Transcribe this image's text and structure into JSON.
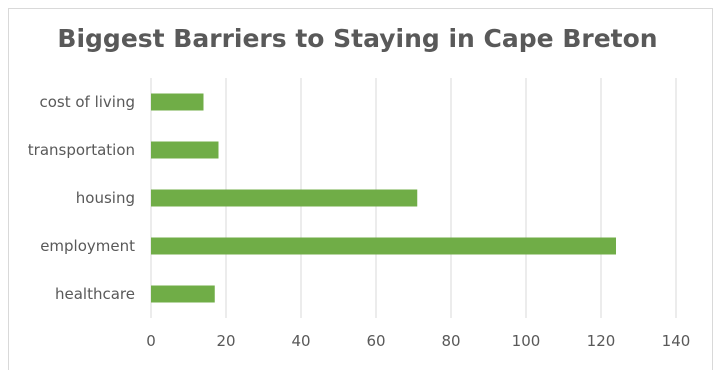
{
  "chart_data": {
    "type": "bar",
    "orientation": "horizontal",
    "title": "Biggest Barriers to Staying in Cape Breton",
    "xlabel": "",
    "ylabel": "",
    "categories": [
      "cost of living",
      "transportation",
      "housing",
      "employment",
      "healthcare"
    ],
    "values": [
      14,
      18,
      71,
      124,
      17
    ],
    "xlim": [
      0,
      140
    ],
    "xticks": [
      "0",
      "20",
      "40",
      "60",
      "80",
      "100",
      "120",
      "140"
    ],
    "grid": "vertical",
    "legend": "none"
  },
  "colors": {
    "bar": "#70ad47",
    "grid": "#d9d9d9",
    "text": "#595959"
  }
}
